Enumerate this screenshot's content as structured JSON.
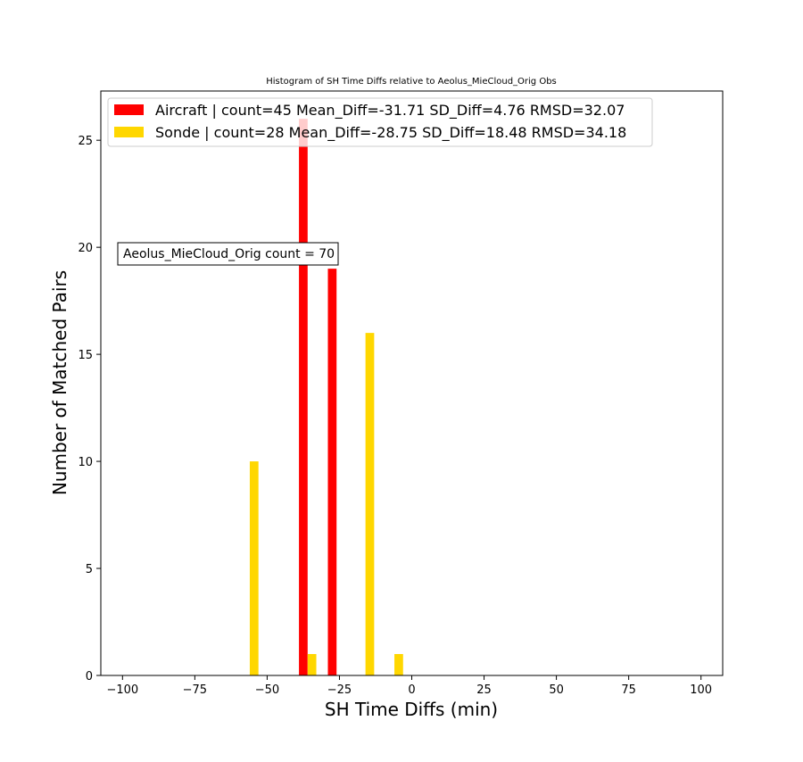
{
  "chart_data": {
    "type": "bar",
    "title": "Histogram of SH Time Diffs relative to Aeolus_MieCloud_Orig Obs",
    "xlabel": "SH Time Diffs (min)",
    "ylabel": "Number of Matched Pairs",
    "xlim": [
      -107.5,
      107.5
    ],
    "ylim": [
      0,
      27.3
    ],
    "xticks": [
      -100,
      -75,
      -50,
      -25,
      0,
      25,
      50,
      75,
      100
    ],
    "xtick_labels": [
      "−100",
      "−75",
      "−50",
      "−25",
      "0",
      "25",
      "50",
      "75",
      "100"
    ],
    "yticks": [
      0,
      5,
      10,
      15,
      20,
      25
    ],
    "ytick_labels": [
      "0",
      "5",
      "10",
      "15",
      "20",
      "25"
    ],
    "bar_width": 3,
    "grid": false,
    "legend_position": "upper-left",
    "annotation": "Aeolus_MieCloud_Orig count = 70",
    "series": [
      {
        "name": "Aircraft | count=45 Mean_Diff=-31.71 SD_Diff=4.76 RMSD=32.07",
        "color": "#ff0000",
        "bars": [
          {
            "x": -37.5,
            "value": 26
          },
          {
            "x": -27.5,
            "value": 19
          }
        ]
      },
      {
        "name": "Sonde | count=28 Mean_Diff=-28.75 SD_Diff=18.48 RMSD=34.18",
        "color": "#ffd700",
        "bars": [
          {
            "x": -54.5,
            "value": 10
          },
          {
            "x": -34.5,
            "value": 1
          },
          {
            "x": -14.5,
            "value": 16
          },
          {
            "x": -4.5,
            "value": 1
          }
        ]
      }
    ]
  }
}
